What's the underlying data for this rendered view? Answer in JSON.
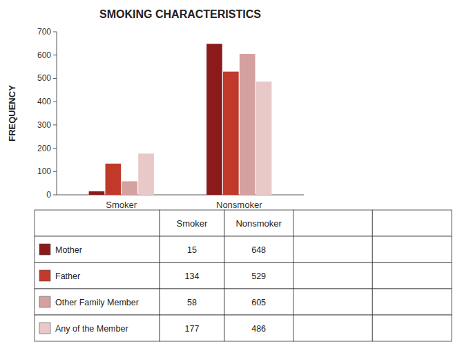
{
  "chart_data": {
    "type": "bar",
    "title": "SMOKING CHARACTERISTICS",
    "ylabel": "FREQUENCY",
    "categories": [
      "Smoker",
      "Nonsmoker"
    ],
    "series": [
      {
        "name": "Mother",
        "color": "#8B1A1A",
        "values": [
          15,
          648
        ]
      },
      {
        "name": "Father",
        "color": "#C0392B",
        "values": [
          134,
          529
        ]
      },
      {
        "name": "Other Family Member",
        "color": "#D4A0A0",
        "values": [
          58,
          605
        ]
      },
      {
        "name": "Any of the  Member",
        "color": "#E8C8C8",
        "values": [
          177,
          486
        ]
      }
    ],
    "ylim": [
      0,
      700
    ],
    "yticks": [
      0,
      100,
      200,
      300,
      400,
      500,
      600,
      700
    ],
    "grid": false,
    "legend": "bottom"
  }
}
